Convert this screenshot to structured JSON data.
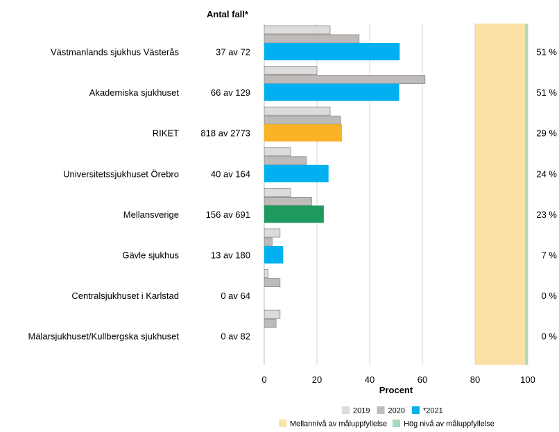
{
  "chart_data": {
    "type": "bar",
    "orientation": "horizontal",
    "count_header": "Antal fall*",
    "xlabel": "Procent",
    "xlim": [
      0,
      100
    ],
    "xticks": [
      0,
      20,
      40,
      60,
      80,
      100
    ],
    "grid": true,
    "categories": [
      "Västmanlands sjukhus Västerås",
      "Akademiska sjukhuset",
      "RIKET",
      "Universitetssjukhuset Örebro",
      "Mellansverige",
      "Gävle sjukhus",
      "Centralsjukhuset i Karlstad",
      "Mälarsjukhuset/Kullbergska sjukhuset"
    ],
    "counts": [
      "37 av 72",
      "66 av 129",
      "818 av 2773",
      "40 av 164",
      "156 av 691",
      "13 av 180",
      "0 av 64",
      "0 av 82"
    ],
    "value_labels": [
      "51 %",
      "51 %",
      "29 %",
      "24 %",
      "23 %",
      "7 %",
      "0 %",
      "0 %"
    ],
    "series": [
      {
        "name": "2019",
        "color": "#dcdcdc",
        "values": [
          25,
          20,
          25,
          10,
          10,
          6,
          1.5,
          6
        ]
      },
      {
        "name": "2020",
        "color": "#bfbbb9",
        "values": [
          36,
          61,
          29,
          16,
          18,
          3,
          6,
          4.5
        ]
      },
      {
        "name": "*2021",
        "color": "#00b0f0",
        "values": [
          51.4,
          51.2,
          29.5,
          24.4,
          22.6,
          7.2,
          0,
          0
        ]
      }
    ],
    "bar_colors_2021": [
      "#00b0f0",
      "#00b0f0",
      "#fbb227",
      "#00b0f0",
      "#1f9a5e",
      "#00b0f0",
      "#00b0f0",
      "#00b0f0"
    ],
    "target_bands": [
      {
        "name": "Mellannivå av måluppfyllelse",
        "from": 80,
        "to": 99,
        "color": "#fde0a6"
      },
      {
        "name": "Hög nivå av måluppfyllelse",
        "from": 99,
        "to": 100,
        "color": "#a6d9bd"
      }
    ],
    "legend_position": "bottom"
  }
}
